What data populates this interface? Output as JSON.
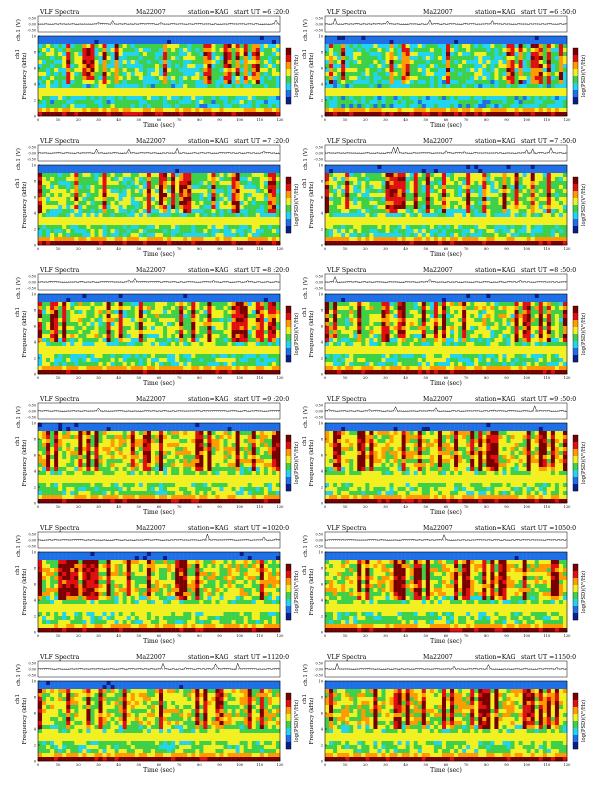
{
  "chart_data": [
    {
      "type": "heatmap",
      "title_left": "VLF Spectra",
      "date": "Ma22007",
      "station": "station=KAG",
      "start": "start  UT =6 :20:0",
      "intensity": 0.45
    },
    {
      "type": "heatmap",
      "title_left": "VLF Spectra",
      "date": "Ma22007",
      "station": "station=KAG",
      "start": "start  UT =6 :50:0",
      "intensity": 0.4
    },
    {
      "type": "heatmap",
      "title_left": "VLF Spectra",
      "date": "Ma22007",
      "station": "station=KAG",
      "start": "start  UT =7 :20:0",
      "intensity": 0.52
    },
    {
      "type": "heatmap",
      "title_left": "VLF Spectra",
      "date": "Ma22007",
      "station": "station=KAG",
      "start": "start  UT =7 :50:0",
      "intensity": 0.55
    },
    {
      "type": "heatmap",
      "title_left": "VLF Spectra",
      "date": "Ma22007",
      "station": "station=KAG",
      "start": "start  UT =8 :20:0",
      "intensity": 0.58
    },
    {
      "type": "heatmap",
      "title_left": "VLF Spectra",
      "date": "Ma22007",
      "station": "station=KAG",
      "start": "start  UT =8 :50:0",
      "intensity": 0.6
    },
    {
      "type": "heatmap",
      "title_left": "VLF Spectra",
      "date": "Ma22007",
      "station": "station=KAG",
      "start": "start  UT =9 :20:0",
      "intensity": 0.72
    },
    {
      "type": "heatmap",
      "title_left": "VLF Spectra",
      "date": "Ma22007",
      "station": "station=KAG",
      "start": "start  UT =9 :50:0",
      "intensity": 0.74
    },
    {
      "type": "heatmap",
      "title_left": "VLF Spectra",
      "date": "Ma22007",
      "station": "station=KAG",
      "start": "start  UT =1020:0",
      "intensity": 0.7
    },
    {
      "type": "heatmap",
      "title_left": "VLF Spectra",
      "date": "Ma22007",
      "station": "station=KAG",
      "start": "start  UT =1050:0",
      "intensity": 0.73
    },
    {
      "type": "heatmap",
      "title_left": "VLF Spectra",
      "date": "Ma22007",
      "station": "station=KAG",
      "start": "start  UT =1120:0",
      "intensity": 0.71
    },
    {
      "type": "heatmap",
      "title_left": "VLF Spectra",
      "date": "Ma22007",
      "station": "station=KAG",
      "start": "start  UT =1150:0",
      "intensity": 0.72
    }
  ],
  "axes": {
    "xlabel": "Time  (sec)",
    "ylabel": "Frequency  (kHz)",
    "ylabel_top": "ch1",
    "ch_label": "ch.1 (V)",
    "cbar_label": "log(PSD)(V²/Hz)",
    "xticks": [
      "0",
      "10",
      "20",
      "30",
      "40",
      "50",
      "60",
      "70",
      "80",
      "90",
      "100",
      "110",
      "120"
    ],
    "yticks": [
      "0",
      "2",
      "4",
      "6",
      "8",
      "10"
    ],
    "chticks": [
      "0.50",
      "0.00",
      "-0.50"
    ],
    "xlim": [
      0,
      120
    ],
    "ylim": [
      0,
      10
    ]
  },
  "colors": {
    "dark_red": "#7a0000",
    "red": "#e01010",
    "orange": "#ff9a00",
    "yellow": "#f2f020",
    "green": "#3fd04a",
    "cyan": "#22d4f0",
    "blue": "#1f6fe6",
    "navy": "#0a1f8c"
  }
}
